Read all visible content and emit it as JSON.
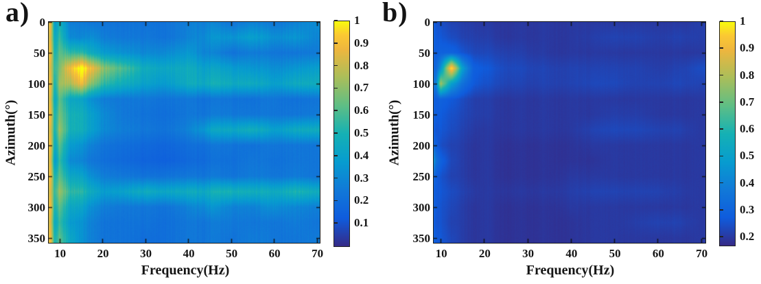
{
  "figure": {
    "background": "#ffffff",
    "axis_color": "#1b1b1b",
    "colormap_name": "parula",
    "colormap_stops": [
      {
        "t": 0.0,
        "hex": "#352a87"
      },
      {
        "t": 0.125,
        "hex": "#0f5cdd"
      },
      {
        "t": 0.25,
        "hex": "#1179d8"
      },
      {
        "t": 0.375,
        "hex": "#079ccf"
      },
      {
        "t": 0.5,
        "hex": "#15b1b4"
      },
      {
        "t": 0.625,
        "hex": "#5ebe85"
      },
      {
        "t": 0.75,
        "hex": "#aabe5a"
      },
      {
        "t": 0.875,
        "hex": "#eeb63e"
      },
      {
        "t": 0.94,
        "hex": "#fbc932"
      },
      {
        "t": 1.0,
        "hex": "#f8fb0d"
      }
    ]
  },
  "chart_data": [
    {
      "type": "heatmap",
      "panel_label": "a)",
      "xlabel": "Frequency(Hz)",
      "ylabel": "Azimuth(°)",
      "x_range": [
        7.5,
        70.7
      ],
      "y_range": [
        0,
        358
      ],
      "x_tick_values": [
        10,
        20,
        30,
        40,
        50,
        60,
        70
      ],
      "x_tick_labels": [
        "10",
        "20",
        "30",
        "40",
        "50",
        "60",
        "70"
      ],
      "y_tick_values": [
        0,
        50,
        100,
        150,
        200,
        250,
        300,
        350
      ],
      "y_tick_labels": [
        "0",
        "50",
        "100",
        "150",
        "200",
        "250",
        "300",
        "350"
      ],
      "colorbar": {
        "vmin": 0,
        "vmax": 1,
        "tick_values": [
          1,
          0.9,
          0.8,
          0.7,
          0.6,
          0.5,
          0.4,
          0.3,
          0.2,
          0.1
        ],
        "tick_labels": [
          "1",
          "0.9",
          "0.8",
          "0.7",
          "0.6",
          "0.5",
          "0.4",
          "0.3",
          "0.2",
          "0.1"
        ]
      },
      "value_range": [
        0,
        1
      ],
      "grid_x": [
        8,
        9,
        10,
        12.5,
        15,
        17.5,
        20,
        25,
        30,
        35,
        40,
        45,
        50,
        55,
        60,
        65,
        70
      ],
      "grid_y": [
        0,
        25,
        50,
        75,
        100,
        125,
        150,
        175,
        200,
        225,
        250,
        275,
        300,
        325,
        350
      ],
      "values": [
        [
          0.85,
          0.33,
          0.46,
          0.28,
          0.24,
          0.24,
          0.24,
          0.22,
          0.22,
          0.24,
          0.27,
          0.28,
          0.24,
          0.28,
          0.24,
          0.28,
          0.33
        ],
        [
          0.8,
          0.4,
          0.52,
          0.33,
          0.28,
          0.33,
          0.28,
          0.24,
          0.24,
          0.24,
          0.28,
          0.33,
          0.36,
          0.4,
          0.33,
          0.36,
          0.3
        ],
        [
          0.85,
          0.46,
          0.58,
          0.58,
          0.52,
          0.46,
          0.4,
          0.33,
          0.3,
          0.33,
          0.36,
          0.28,
          0.24,
          0.26,
          0.24,
          0.24,
          0.26
        ],
        [
          0.8,
          0.52,
          0.62,
          0.95,
          1.0,
          0.9,
          0.75,
          0.58,
          0.46,
          0.46,
          0.46,
          0.4,
          0.4,
          0.36,
          0.33,
          0.36,
          0.4
        ],
        [
          0.85,
          0.46,
          0.68,
          0.8,
          0.85,
          0.7,
          0.58,
          0.46,
          0.4,
          0.4,
          0.46,
          0.46,
          0.48,
          0.46,
          0.4,
          0.46,
          0.48
        ],
        [
          0.8,
          0.4,
          0.58,
          0.46,
          0.4,
          0.33,
          0.28,
          0.24,
          0.24,
          0.24,
          0.24,
          0.22,
          0.24,
          0.22,
          0.24,
          0.22,
          0.24
        ],
        [
          0.85,
          0.46,
          0.62,
          0.52,
          0.46,
          0.4,
          0.33,
          0.24,
          0.22,
          0.22,
          0.24,
          0.24,
          0.26,
          0.24,
          0.24,
          0.24,
          0.26
        ],
        [
          0.8,
          0.46,
          0.68,
          0.52,
          0.46,
          0.4,
          0.33,
          0.26,
          0.24,
          0.24,
          0.28,
          0.4,
          0.46,
          0.48,
          0.4,
          0.46,
          0.48
        ],
        [
          0.85,
          0.4,
          0.58,
          0.4,
          0.33,
          0.28,
          0.24,
          0.2,
          0.18,
          0.18,
          0.2,
          0.22,
          0.24,
          0.22,
          0.24,
          0.24,
          0.24
        ],
        [
          0.8,
          0.33,
          0.52,
          0.33,
          0.28,
          0.24,
          0.22,
          0.18,
          0.16,
          0.16,
          0.18,
          0.2,
          0.22,
          0.24,
          0.22,
          0.24,
          0.24
        ],
        [
          0.85,
          0.46,
          0.58,
          0.46,
          0.4,
          0.33,
          0.28,
          0.24,
          0.22,
          0.24,
          0.24,
          0.24,
          0.24,
          0.26,
          0.24,
          0.26,
          0.24
        ],
        [
          0.8,
          0.52,
          0.68,
          0.58,
          0.52,
          0.46,
          0.4,
          0.4,
          0.46,
          0.46,
          0.46,
          0.46,
          0.52,
          0.48,
          0.46,
          0.52,
          0.48
        ],
        [
          0.85,
          0.46,
          0.58,
          0.46,
          0.4,
          0.33,
          0.28,
          0.24,
          0.24,
          0.24,
          0.28,
          0.33,
          0.3,
          0.28,
          0.33,
          0.3,
          0.28
        ],
        [
          0.8,
          0.4,
          0.52,
          0.4,
          0.33,
          0.28,
          0.24,
          0.22,
          0.22,
          0.22,
          0.24,
          0.24,
          0.26,
          0.24,
          0.24,
          0.26,
          0.24
        ],
        [
          0.85,
          0.46,
          0.58,
          0.46,
          0.33,
          0.28,
          0.24,
          0.22,
          0.2,
          0.22,
          0.24,
          0.24,
          0.24,
          0.26,
          0.24,
          0.24,
          0.26
        ]
      ]
    },
    {
      "type": "heatmap",
      "panel_label": "b)",
      "xlabel": "Frequency(Hz)",
      "ylabel": "Azimuth(°)",
      "x_range": [
        8.4,
        71.0
      ],
      "y_range": [
        0,
        358
      ],
      "x_tick_values": [
        10,
        20,
        30,
        40,
        50,
        60,
        70
      ],
      "x_tick_labels": [
        "10",
        "20",
        "30",
        "40",
        "50",
        "60",
        "70"
      ],
      "y_tick_values": [
        0,
        50,
        100,
        150,
        200,
        250,
        300,
        350
      ],
      "y_tick_labels": [
        "0",
        "50",
        "100",
        "150",
        "200",
        "250",
        "300",
        "350"
      ],
      "colorbar": {
        "vmin": 0.17,
        "vmax": 1.0,
        "tick_values": [
          1,
          0.9,
          0.8,
          0.7,
          0.6,
          0.5,
          0.4,
          0.3,
          0.2
        ],
        "tick_labels": [
          "1",
          "0.9",
          "0.8",
          "0.7",
          "0.6",
          "0.5",
          "0.4",
          "0.3",
          "0.2"
        ]
      },
      "value_range": [
        0.17,
        1.0
      ],
      "grid_x": [
        8,
        9,
        10,
        12.5,
        15,
        17.5,
        20,
        25,
        30,
        35,
        40,
        45,
        50,
        55,
        60,
        65,
        70
      ],
      "grid_y": [
        0,
        25,
        50,
        75,
        100,
        125,
        150,
        175,
        200,
        225,
        250,
        275,
        300,
        325,
        350
      ],
      "values": [
        [
          0.3,
          0.26,
          0.25,
          0.22,
          0.21,
          0.21,
          0.2,
          0.2,
          0.2,
          0.2,
          0.2,
          0.2,
          0.2,
          0.2,
          0.2,
          0.2,
          0.21
        ],
        [
          0.32,
          0.27,
          0.27,
          0.24,
          0.22,
          0.22,
          0.21,
          0.2,
          0.2,
          0.2,
          0.2,
          0.21,
          0.22,
          0.22,
          0.21,
          0.22,
          0.21
        ],
        [
          0.3,
          0.28,
          0.3,
          0.3,
          0.26,
          0.24,
          0.23,
          0.22,
          0.21,
          0.2,
          0.2,
          0.2,
          0.2,
          0.2,
          0.2,
          0.2,
          0.2
        ],
        [
          0.3,
          0.32,
          0.45,
          1.0,
          0.5,
          0.3,
          0.27,
          0.24,
          0.23,
          0.22,
          0.22,
          0.22,
          0.22,
          0.22,
          0.21,
          0.22,
          0.24
        ],
        [
          0.35,
          0.4,
          0.8,
          0.5,
          0.35,
          0.28,
          0.25,
          0.23,
          0.22,
          0.22,
          0.22,
          0.23,
          0.23,
          0.22,
          0.22,
          0.23,
          0.22
        ],
        [
          0.3,
          0.28,
          0.3,
          0.27,
          0.24,
          0.22,
          0.21,
          0.2,
          0.2,
          0.2,
          0.2,
          0.2,
          0.2,
          0.2,
          0.2,
          0.2,
          0.2
        ],
        [
          0.32,
          0.28,
          0.28,
          0.25,
          0.23,
          0.22,
          0.21,
          0.2,
          0.2,
          0.2,
          0.2,
          0.2,
          0.21,
          0.21,
          0.2,
          0.2,
          0.2
        ],
        [
          0.3,
          0.26,
          0.27,
          0.24,
          0.22,
          0.21,
          0.2,
          0.2,
          0.2,
          0.2,
          0.2,
          0.22,
          0.23,
          0.23,
          0.22,
          0.22,
          0.2
        ],
        [
          0.35,
          0.28,
          0.25,
          0.22,
          0.21,
          0.2,
          0.2,
          0.19,
          0.19,
          0.19,
          0.19,
          0.2,
          0.2,
          0.2,
          0.2,
          0.2,
          0.2
        ],
        [
          0.55,
          0.35,
          0.3,
          0.23,
          0.21,
          0.2,
          0.2,
          0.19,
          0.19,
          0.19,
          0.19,
          0.19,
          0.2,
          0.2,
          0.2,
          0.2,
          0.2
        ],
        [
          0.35,
          0.28,
          0.26,
          0.22,
          0.21,
          0.2,
          0.2,
          0.19,
          0.19,
          0.19,
          0.2,
          0.2,
          0.2,
          0.2,
          0.2,
          0.2,
          0.2
        ],
        [
          0.3,
          0.27,
          0.27,
          0.24,
          0.22,
          0.21,
          0.2,
          0.2,
          0.2,
          0.2,
          0.21,
          0.22,
          0.22,
          0.22,
          0.22,
          0.21,
          0.2
        ],
        [
          0.32,
          0.27,
          0.26,
          0.23,
          0.21,
          0.2,
          0.2,
          0.19,
          0.19,
          0.19,
          0.2,
          0.2,
          0.2,
          0.2,
          0.2,
          0.2,
          0.2
        ],
        [
          0.3,
          0.26,
          0.26,
          0.22,
          0.21,
          0.2,
          0.2,
          0.19,
          0.19,
          0.19,
          0.19,
          0.2,
          0.2,
          0.21,
          0.22,
          0.22,
          0.2
        ],
        [
          0.32,
          0.27,
          0.27,
          0.23,
          0.21,
          0.2,
          0.2,
          0.19,
          0.19,
          0.19,
          0.19,
          0.2,
          0.2,
          0.2,
          0.2,
          0.2,
          0.2
        ]
      ]
    }
  ]
}
